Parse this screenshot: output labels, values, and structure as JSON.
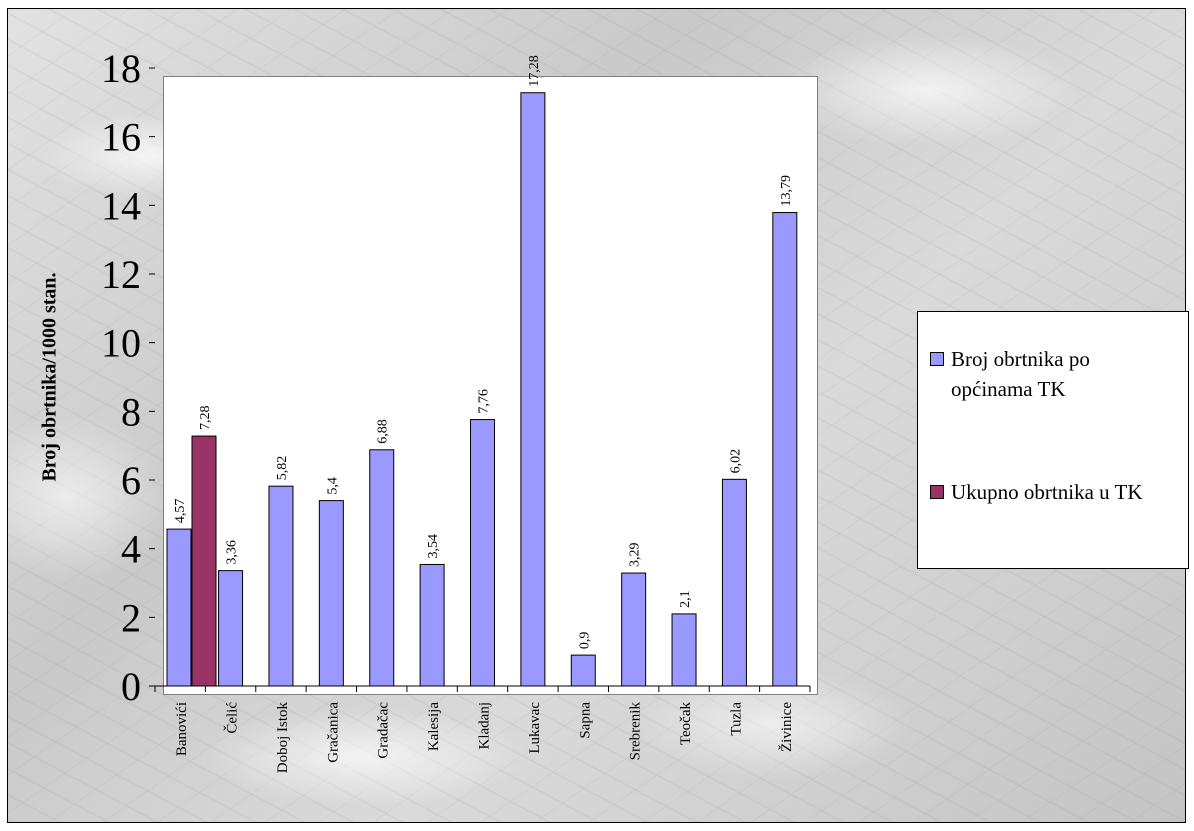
{
  "chart_data": {
    "type": "bar",
    "title": "",
    "xlabel": "",
    "ylabel": "Broj obrtnika/1000 stan.",
    "ylim": [
      0,
      18
    ],
    "yticks": [
      "0",
      "2",
      "4",
      "6",
      "8",
      "10",
      "12",
      "14",
      "16",
      "18"
    ],
    "grid": false,
    "legend_position": "right",
    "categories": [
      "Banovići",
      "Čelić",
      "Doboj Istok",
      "Gračanica",
      "Gradačac",
      "Kalesija",
      "Kladanj",
      "Lukavac",
      "Sapna",
      "Srebrenik",
      "Teočak",
      "Tuzla",
      "Živinice"
    ],
    "series": [
      {
        "name": "Broj obrtnika po općinama TK",
        "color": "#9999ff",
        "values": [
          4.57,
          3.36,
          5.82,
          5.4,
          6.88,
          3.54,
          7.76,
          17.28,
          0.9,
          3.29,
          2.1,
          6.02,
          13.79
        ],
        "labels": [
          "4,57",
          "3,36",
          "5,82",
          "5,4",
          "6,88",
          "3,54",
          "7,76",
          "17,28",
          "0,9",
          "3,29",
          "2,1",
          "6,02",
          "13,79"
        ]
      },
      {
        "name": "Ukupno obrtnika u TK",
        "color": "#993366",
        "values": [
          7.28,
          null,
          null,
          null,
          null,
          null,
          null,
          null,
          null,
          null,
          null,
          null,
          null
        ],
        "labels": [
          "7,28",
          "",
          "",
          "",
          "",
          "",
          "",
          "",
          "",
          "",
          "",
          "",
          ""
        ]
      }
    ]
  },
  "legend": {
    "items": [
      {
        "label": "Broj obrtnika po općinama TK",
        "color": "#9999ff"
      },
      {
        "label": "Ukupno obrtnika u TK",
        "color": "#993366"
      }
    ]
  }
}
